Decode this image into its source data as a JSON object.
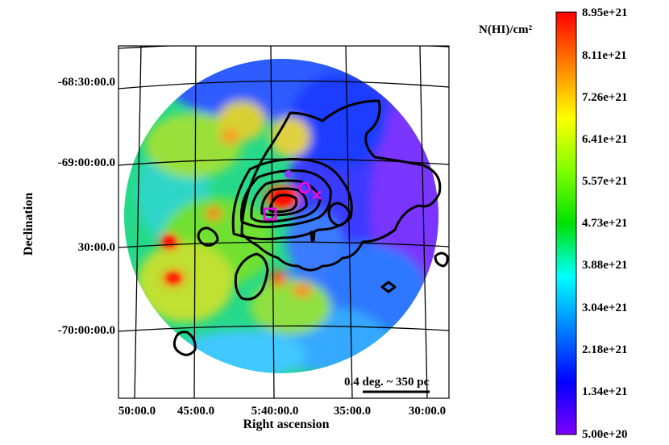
{
  "axes": {
    "xlabel": "Right ascension",
    "ylabel": "Declination",
    "ra_ticks": [
      "50:00.0",
      "45:00.0",
      "5:40:00.0",
      "35:00.0",
      "30:00.0"
    ],
    "dec_ticks": [
      "-68:30:00.0",
      "-69:00:00.0",
      "30:00.0",
      "-70:00:00.0"
    ]
  },
  "scalebar": {
    "label": "0.4 deg. ~ 350 pc"
  },
  "colorbar": {
    "title": "N(HI)/cm²",
    "ticks": [
      "8.95e+21",
      "8.11e+21",
      "7.26e+21",
      "6.41e+21",
      "5.57e+21",
      "4.73e+21",
      "3.88e+21",
      "3.04e+21",
      "2.18e+21",
      "1.34e+21",
      "5.00e+20"
    ],
    "colormap": [
      "#ff0000",
      "#ff8000",
      "#ffff00",
      "#80ff00",
      "#00e000",
      "#00ffff",
      "#0080ff",
      "#0000ff",
      "#8000ff"
    ]
  },
  "markers": [
    {
      "symbol": "circle",
      "color": "#e010e0"
    },
    {
      "symbol": "cross",
      "color": "#e010e0"
    },
    {
      "symbol": "square",
      "color": "#e010e0"
    },
    {
      "symbol": "dot",
      "color": "#8040ff"
    }
  ]
}
